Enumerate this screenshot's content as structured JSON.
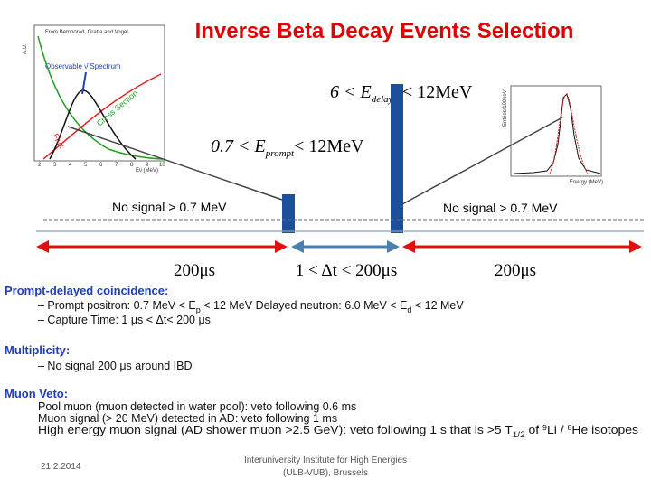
{
  "title": "Inverse Beta Decay Events Selection",
  "left_inset": {
    "source": "From Bemporad, Gratta and Vogel",
    "legend": "Observable ν̄  Spectrum",
    "flux": "Flux",
    "cross_section": "Cross Section",
    "y_label": "A.U.",
    "x_label": "Eν (MeV)",
    "x_ticks": [
      "2",
      "3",
      "4",
      "5",
      "6",
      "7",
      "8",
      "9",
      "10"
    ]
  },
  "right_inset": {
    "y_label": "Entries/100keV",
    "x_label": "Energy (MeV)"
  },
  "cuts": {
    "delayed": {
      "lhs": "6 < E",
      "sub": "delayed",
      "rhs": "< 12MeV"
    },
    "prompt": {
      "lhs": "0.7 < E",
      "sub": "prompt",
      "rhs": "< 12MeV"
    }
  },
  "no_signal": [
    "No signal > 0.7 MeV",
    "No signal > 0.7 MeV"
  ],
  "windows": [
    "200μs",
    "1 < Δt < 200μs",
    "200μs"
  ],
  "sections": {
    "coincidence": {
      "heading": "Prompt-delayed coincidence:",
      "line1": [
        "–   Prompt positron: 0.7 MeV < E",
        "p",
        " < 12 MeV Delayed neutron: 6.0 MeV < E",
        "d",
        " < 12 MeV"
      ],
      "line2": "–   Capture Time: 1 μs < Δt< 200 μs"
    },
    "multiplicity": {
      "heading": "Multiplicity:",
      "line1": "–   No signal 200 μs around IBD"
    },
    "muon_veto": {
      "heading": "Muon Veto:",
      "line1": "Pool muon (muon detected in water pool): veto following 0.6 ms",
      "line2": "Muon signal (> 20 MeV) detected in AD: veto following 1 ms",
      "line3": [
        "High energy muon signal (AD shower muon >2.5 GeV): veto following 1 s that is >5 T",
        "1/2",
        " of ",
        "9",
        "Li / ",
        "8",
        "He isotopes"
      ]
    }
  },
  "footer": {
    "date": "21.2.2014",
    "institute": [
      "Interuniversity Institute for High Energies",
      "(ULB-VUB), Brussels"
    ]
  }
}
